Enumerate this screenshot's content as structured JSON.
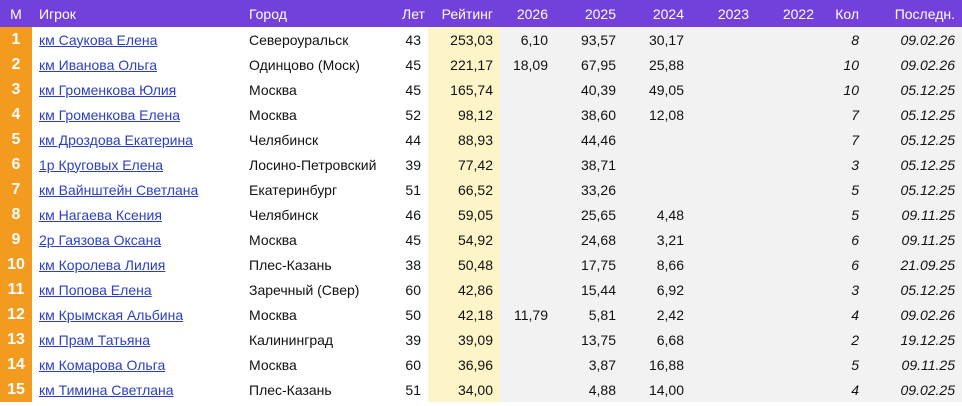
{
  "table": {
    "headers": [
      "М",
      "Игрок",
      "Город",
      "Лет",
      "Рейтинг",
      "2026",
      "2025",
      "2024",
      "2023",
      "2022",
      "Кол",
      "Последн."
    ],
    "rows": [
      [
        "1",
        "км Саукова Елена",
        "Североуральск",
        "43",
        "253,03",
        "6,10",
        "93,57",
        "30,17",
        null,
        null,
        "8",
        "09.02.26"
      ],
      [
        "2",
        "км Иванова Ольга",
        "Одинцово (Моск)",
        "45",
        "221,17",
        "18,09",
        "67,95",
        "25,88",
        null,
        null,
        "10",
        "09.02.26"
      ],
      [
        "3",
        "км Громенкова Юлия",
        "Москва",
        "45",
        "165,74",
        null,
        "40,39",
        "49,05",
        null,
        null,
        "10",
        "05.12.25"
      ],
      [
        "4",
        "км Громенкова Елена",
        "Москва",
        "52",
        "98,12",
        null,
        "38,60",
        "12,08",
        null,
        null,
        "7",
        "05.12.25"
      ],
      [
        "5",
        "км Дроздова Екатерина",
        "Челябинск",
        "44",
        "88,93",
        null,
        "44,46",
        null,
        null,
        null,
        "7",
        "05.12.25"
      ],
      [
        "6",
        "1р Круговых Елена",
        "Лосино-Петровский",
        "39",
        "77,42",
        null,
        "38,71",
        null,
        null,
        null,
        "3",
        "05.12.25"
      ],
      [
        "7",
        "км Вайнштейн Светлана",
        "Екатеринбург",
        "51",
        "66,52",
        null,
        "33,26",
        null,
        null,
        null,
        "5",
        "05.12.25"
      ],
      [
        "8",
        "км Нагаева Ксения",
        "Челябинск",
        "46",
        "59,05",
        null,
        "25,65",
        "4,48",
        null,
        null,
        "5",
        "09.11.25"
      ],
      [
        "9",
        "2р Гаязова Оксана",
        "Москва",
        "45",
        "54,92",
        null,
        "24,68",
        "3,21",
        null,
        null,
        "6",
        "09.11.25"
      ],
      [
        "10",
        "км Королева Лилия",
        "Плес-Казань",
        "38",
        "50,48",
        null,
        "17,75",
        "8,66",
        null,
        null,
        "6",
        "21.09.25"
      ],
      [
        "11",
        "км Попова Елена",
        "Заречный (Свер)",
        "60",
        "42,86",
        null,
        "15,44",
        "6,92",
        null,
        null,
        "3",
        "05.12.25"
      ],
      [
        "12",
        "км Крымская Альбина",
        "Москва",
        "50",
        "42,18",
        "11,79",
        "5,81",
        "2,42",
        null,
        null,
        "4",
        "09.02.26"
      ],
      [
        "13",
        "км Прам Татьяна",
        "Калининград",
        "39",
        "39,09",
        null,
        "13,75",
        "6,68",
        null,
        null,
        "2",
        "19.12.25"
      ],
      [
        "14",
        "км Комарова Ольга",
        "Москва",
        "60",
        "36,96",
        null,
        "3,87",
        "16,88",
        null,
        null,
        "5",
        "09.11.25"
      ],
      [
        "15",
        "км Тимина Светлана",
        "Плес-Казань",
        "51",
        "34,00",
        null,
        "4,88",
        "14,00",
        null,
        null,
        "4",
        "09.02.25"
      ]
    ]
  }
}
